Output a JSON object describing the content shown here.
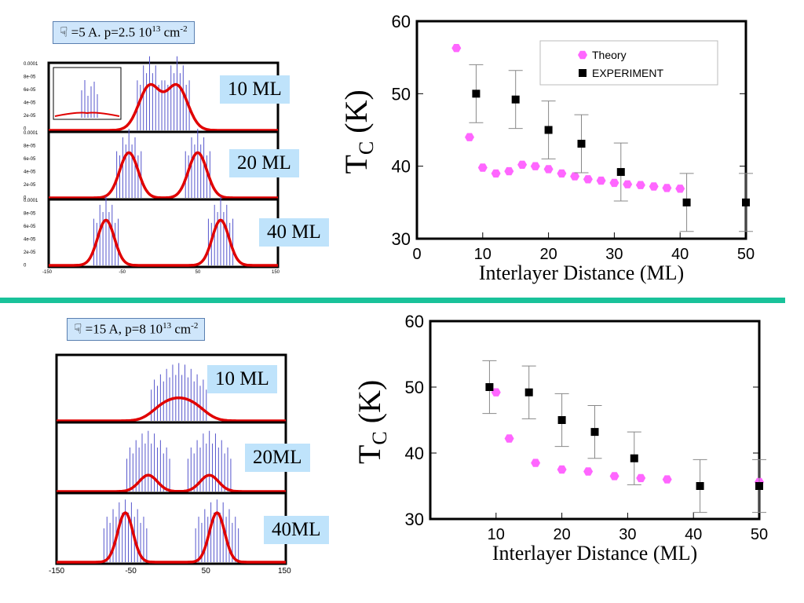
{
  "top": {
    "params": {
      "prefix": "=5 A. p=2.5 10",
      "exp": "13",
      "unit": " cm",
      "unit_exp": "-2"
    },
    "ml_labels": [
      "10 ML",
      "20 ML",
      "40 ML"
    ],
    "small_y_ticks": [
      "0.0001",
      "8e-05",
      "6e-05",
      "4e-05",
      "2e-05",
      "0"
    ],
    "small_x_ticks": [
      "-150",
      "-50",
      "50",
      "150"
    ]
  },
  "bottom": {
    "params": {
      "prefix": "=15 A, p=8 10",
      "exp": "13",
      "unit": " cm",
      "unit_exp": "-2"
    },
    "ml_labels": [
      "10 ML",
      "20ML",
      "40ML"
    ],
    "small_x_ticks": [
      "-150",
      "-50",
      "50",
      "150"
    ]
  },
  "icon": "hand-pointing-down-icon",
  "colors": {
    "theory": "#ff66ff",
    "experiment": "#000000",
    "profile": "#e00000",
    "bars": "#5555cc",
    "divider": "#19c29a",
    "label_bg": "#bfe3fb"
  },
  "chart_data": [
    {
      "type": "scatter",
      "xlabel": "Interlayer Distance (ML)",
      "ylabel": "T_C (K)",
      "ylabel_main": "T",
      "ylabel_sub": "C",
      "ylabel_unit": "(K)",
      "xlim": [
        0,
        50
      ],
      "ylim": [
        30,
        60
      ],
      "xticks": [
        "0",
        "10",
        "20",
        "30",
        "40",
        "50"
      ],
      "yticks": [
        "30",
        "40",
        "50",
        "60"
      ],
      "legend_position": "top-right",
      "series": [
        {
          "name": "Theory",
          "marker": "hexagon",
          "x": [
            6,
            8,
            10,
            12,
            14,
            16,
            18,
            20,
            22,
            24,
            26,
            28,
            30,
            32,
            34,
            36,
            38,
            40
          ],
          "y": [
            56.3,
            44,
            39.8,
            39,
            39.3,
            40.2,
            40,
            39.6,
            39,
            38.6,
            38.2,
            38,
            37.7,
            37.5,
            37.4,
            37.2,
            37,
            36.9
          ]
        },
        {
          "name": "EXPERIMENT",
          "marker": "square",
          "x": [
            9,
            15,
            20,
            25,
            31,
            41,
            50
          ],
          "y": [
            50,
            49.2,
            45,
            43.1,
            39.2,
            35,
            35
          ],
          "err": [
            4,
            4,
            4,
            4,
            4,
            4,
            4
          ]
        }
      ]
    },
    {
      "type": "scatter",
      "xlabel": "Interlayer Distance (ML)",
      "ylabel": "T_C (K)",
      "ylabel_main": "T",
      "ylabel_sub": "C",
      "ylabel_unit": "(K)",
      "xlim": [
        0,
        50
      ],
      "ylim": [
        30,
        60
      ],
      "xticks": [
        "10",
        "20",
        "30",
        "40",
        "50"
      ],
      "yticks": [
        "30",
        "40",
        "50",
        "60"
      ],
      "series": [
        {
          "name": "",
          "marker": "hexagon",
          "x": [
            10,
            12,
            16,
            20,
            24,
            28,
            32,
            36,
            50
          ],
          "y": [
            49.2,
            42.2,
            38.5,
            37.5,
            37.2,
            36.5,
            36.2,
            36,
            35.6
          ]
        },
        {
          "name": "",
          "marker": "square",
          "x": [
            9,
            15,
            20,
            25,
            31,
            41,
            50
          ],
          "y": [
            50,
            49.2,
            45,
            43.2,
            39.2,
            35,
            35
          ],
          "err": [
            4,
            4,
            4,
            4,
            4,
            4,
            4
          ]
        }
      ]
    }
  ]
}
